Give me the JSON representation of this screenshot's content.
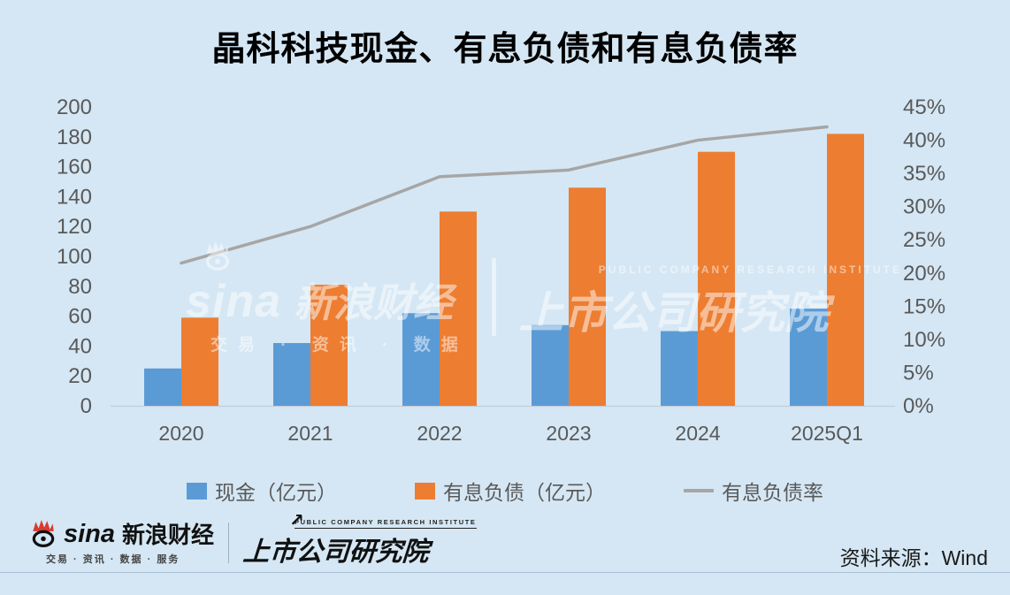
{
  "title": "晶科科技现金、有息负债和有息负债率",
  "chart_data": {
    "type": "bar",
    "subtype": "grouped-bars-with-line",
    "categories": [
      "2020",
      "2021",
      "2022",
      "2023",
      "2024",
      "2025Q1"
    ],
    "series": [
      {
        "name": "现金（亿元）",
        "type": "bar",
        "axis": "left",
        "values": [
          25,
          42,
          62,
          54,
          50,
          65
        ]
      },
      {
        "name": "有息负债（亿元）",
        "type": "bar",
        "axis": "left",
        "values": [
          59,
          81,
          130,
          146,
          170,
          182
        ]
      },
      {
        "name": "有息负债率",
        "type": "line",
        "axis": "right",
        "unit": "%",
        "values": [
          21.5,
          27,
          34.5,
          35.5,
          40,
          42
        ]
      }
    ],
    "left_axis": {
      "min": 0,
      "max": 200,
      "step": 20
    },
    "right_axis": {
      "min": 0,
      "max": 45,
      "step": 5,
      "format": "percent"
    },
    "grid": false,
    "legend_position": "bottom"
  },
  "legend": {
    "cash": "现金（亿元）",
    "debt": "有息负债（亿元）",
    "ratio": "有息负债率"
  },
  "colors": {
    "background": "#D5E7F4",
    "cash": "#5B9BD5",
    "debt": "#ED7D31",
    "ratio_line": "#A6A6A6",
    "axis_text": "#595959",
    "baseline": "#C3CCD6"
  },
  "watermark": {
    "sina_en": "sina",
    "sina_cn": "新浪财经",
    "tagline": "交易 · 资讯 · 数据",
    "institute_en": "PUBLIC COMPANY RESEARCH INSTITUTE",
    "institute_cn": "上市公司研究院"
  },
  "footer": {
    "sina_en": "sina",
    "sina_cn": "新浪财经",
    "tagline": "交易 · 资讯 · 数据 · 服务",
    "institute_en": "PUBLIC COMPANY RESEARCH INSTITUTE",
    "institute_cn": "上市公司研究院",
    "arrow": "↗",
    "source": "资料来源：Wind"
  }
}
